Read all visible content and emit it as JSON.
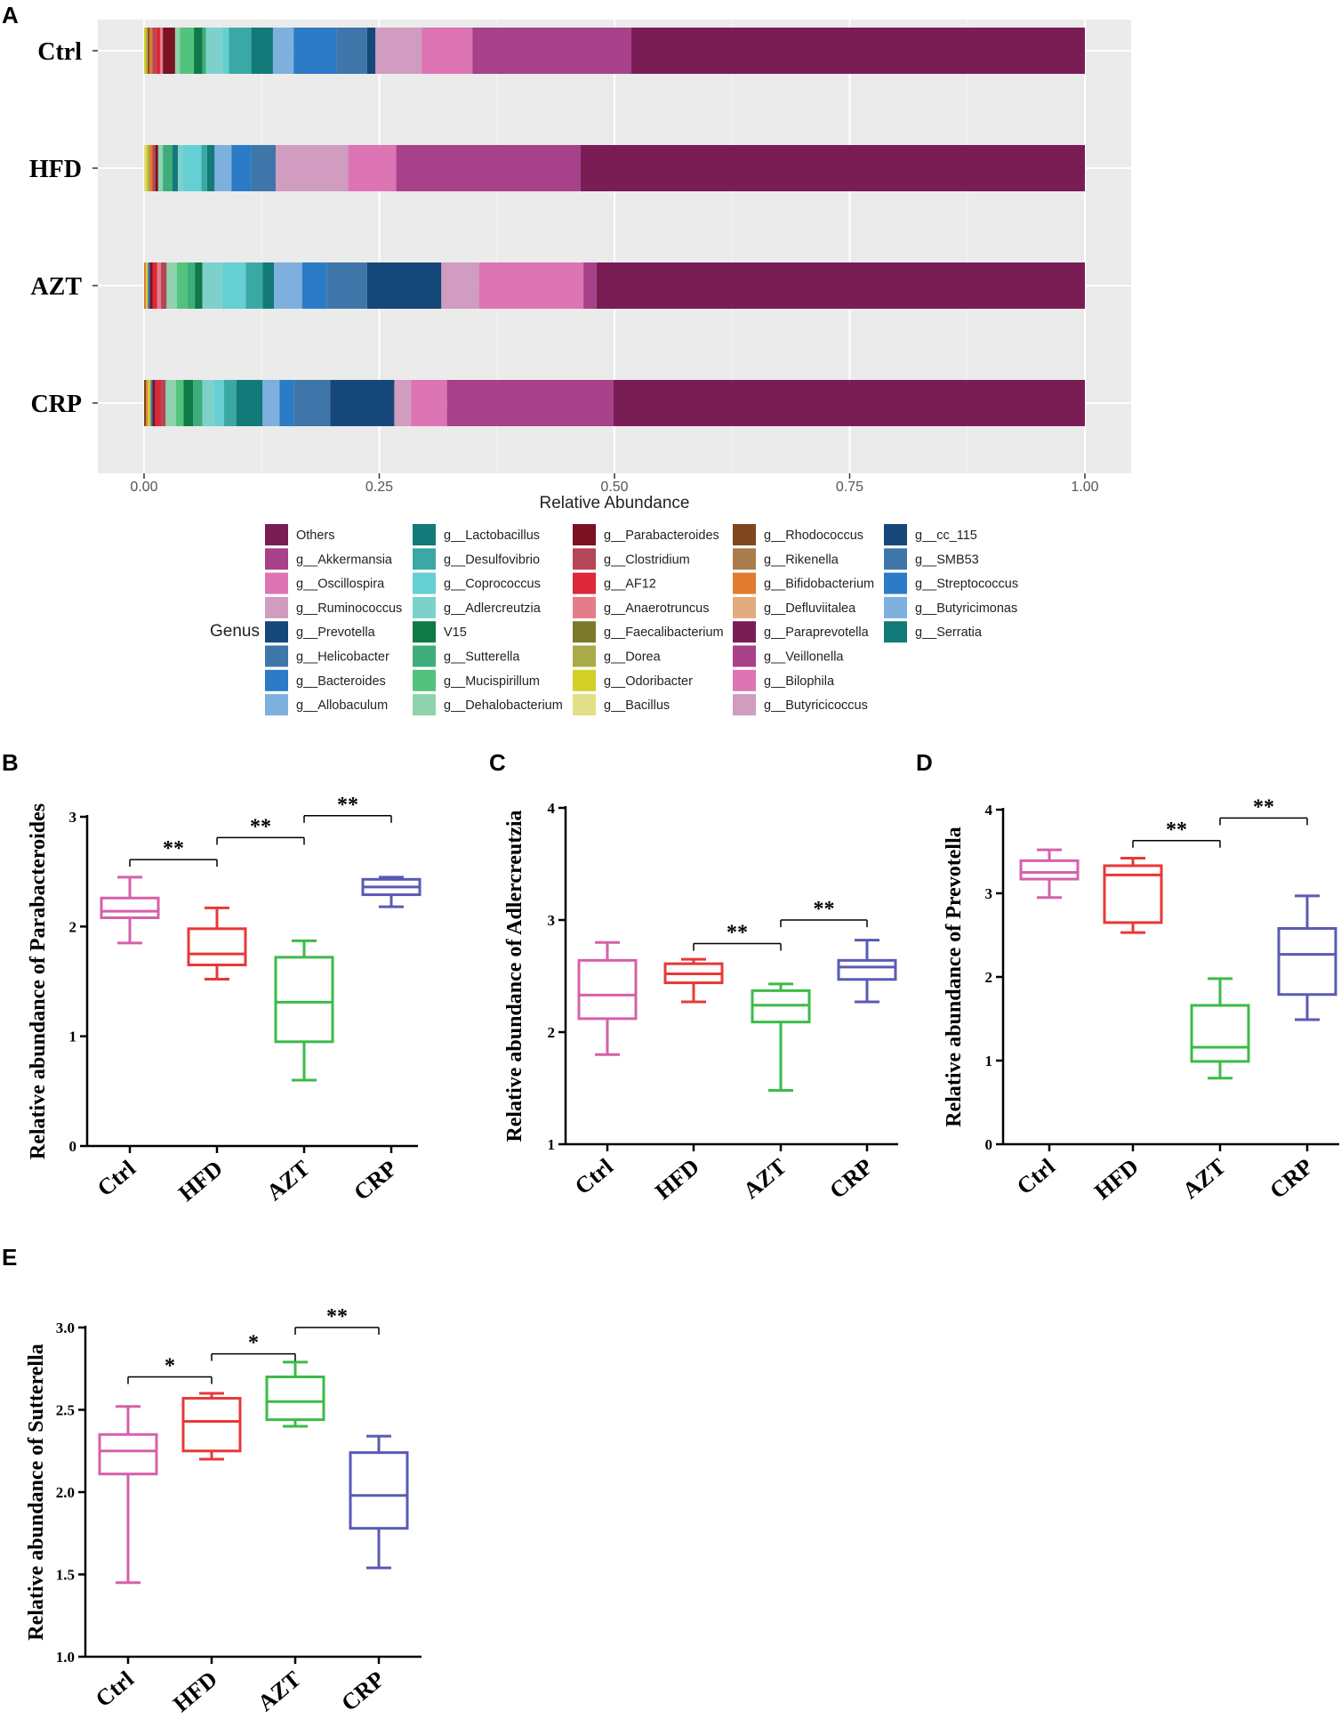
{
  "chart_data": [
    {
      "panel": "A",
      "type": "bar",
      "orientation": "horizontal-stacked",
      "categories": [
        "Ctrl",
        "HFD",
        "AZT",
        "CRP"
      ],
      "xlabel": "Relative Abundance",
      "xlim": [
        0,
        1
      ],
      "xticks": [
        "0.00",
        "0.25",
        "0.50",
        "0.75",
        "1.00"
      ],
      "legend_title": "Genus",
      "legend": [
        {
          "name": "Others",
          "color": "#7a1d55"
        },
        {
          "name": "g__Akkermansia",
          "color": "#a6418a"
        },
        {
          "name": "g__Oscillospira",
          "color": "#dd74b3"
        },
        {
          "name": "g__Ruminococcus",
          "color": "#d09cc0"
        },
        {
          "name": "g__Prevotella",
          "color": "#154879"
        },
        {
          "name": "g__Helicobacter",
          "color": "#3f76aa"
        },
        {
          "name": "g__Bacteroides",
          "color": "#2b7bc6"
        },
        {
          "name": "g__Allobaculum",
          "color": "#7eb0de"
        },
        {
          "name": "g__Lactobacillus",
          "color": "#127a78"
        },
        {
          "name": "g__Desulfovibrio",
          "color": "#3aa9a6"
        },
        {
          "name": "g__Coprococcus",
          "color": "#66cfd3"
        },
        {
          "name": "g__Adlercreutzia",
          "color": "#7ed1cb"
        },
        {
          "name": "V15",
          "color": "#0f7a48"
        },
        {
          "name": "g__Sutterella",
          "color": "#3ead7b"
        },
        {
          "name": "g__Mucispirillum",
          "color": "#53c27d"
        },
        {
          "name": "g__Dehalobacterium",
          "color": "#8ed3ad"
        },
        {
          "name": "g__Parabacteroides",
          "color": "#7c1124"
        },
        {
          "name": "g__Clostridium",
          "color": "#b44657"
        },
        {
          "name": "g__AF12",
          "color": "#dc2839"
        },
        {
          "name": "g__Anaerotruncus",
          "color": "#e57c8a"
        },
        {
          "name": "g__Faecalibacterium",
          "color": "#7b7a2b"
        },
        {
          "name": "g__Dorea",
          "color": "#a9ab48"
        },
        {
          "name": "g__Odoribacter",
          "color": "#d4cf27"
        },
        {
          "name": "g__Bacillus",
          "color": "#e2df86"
        },
        {
          "name": "g__Rhodococcus",
          "color": "#7e471e"
        },
        {
          "name": "g__Rikenella",
          "color": "#aa7b4b"
        },
        {
          "name": "g__Bifidobacterium",
          "color": "#e07b30"
        },
        {
          "name": "g__Defluviitalea",
          "color": "#e3ac7e"
        },
        {
          "name": "g__Paraprevotella",
          "color": "#7a1d55"
        },
        {
          "name": "g__Veillonella",
          "color": "#a6418a"
        },
        {
          "name": "g__Bilophila",
          "color": "#dd74b3"
        },
        {
          "name": "g__Butyricicoccus",
          "color": "#d09cc0"
        },
        {
          "name": "g__cc_115",
          "color": "#154879"
        },
        {
          "name": "g__SMB53",
          "color": "#3f76aa"
        },
        {
          "name": "g__Streptococcus",
          "color": "#2b7bc6"
        },
        {
          "name": "g__Butyricimonas",
          "color": "#7eb0de"
        },
        {
          "name": "g__Serratia",
          "color": "#127a78"
        }
      ],
      "series": [
        {
          "group": "Ctrl",
          "segments": [
            {
              "end": 0.002,
              "color": "#d4cf27"
            },
            {
              "end": 0.004,
              "color": "#a9ab48"
            },
            {
              "end": 0.006,
              "color": "#7e471e"
            },
            {
              "end": 0.009,
              "color": "#e07b30"
            },
            {
              "end": 0.013,
              "color": "#b44657"
            },
            {
              "end": 0.017,
              "color": "#dc2839"
            },
            {
              "end": 0.02,
              "color": "#e57c8a"
            },
            {
              "end": 0.033,
              "color": "#7c1124"
            },
            {
              "end": 0.038,
              "color": "#8ed3ad"
            },
            {
              "end": 0.053,
              "color": "#53c27d"
            },
            {
              "end": 0.062,
              "color": "#0f7a48"
            },
            {
              "end": 0.066,
              "color": "#3ead7b"
            },
            {
              "end": 0.083,
              "color": "#7ed1cb"
            },
            {
              "end": 0.09,
              "color": "#66cfd3"
            },
            {
              "end": 0.114,
              "color": "#3aa9a6"
            },
            {
              "end": 0.137,
              "color": "#127a78"
            },
            {
              "end": 0.159,
              "color": "#7eb0de"
            },
            {
              "end": 0.205,
              "color": "#2b7bc6"
            },
            {
              "end": 0.237,
              "color": "#3f76aa"
            },
            {
              "end": 0.246,
              "color": "#154879"
            },
            {
              "end": 0.295,
              "color": "#d09cc0"
            },
            {
              "end": 0.349,
              "color": "#dd74b3"
            },
            {
              "end": 0.518,
              "color": "#a6418a"
            },
            {
              "end": 1.0,
              "color": "#7a1d55"
            }
          ]
        },
        {
          "group": "HFD",
          "segments": [
            {
              "end": 0.002,
              "color": "#e2df86"
            },
            {
              "end": 0.004,
              "color": "#d4cf27"
            },
            {
              "end": 0.006,
              "color": "#a9ab48"
            },
            {
              "end": 0.009,
              "color": "#e07b30"
            },
            {
              "end": 0.012,
              "color": "#b44657"
            },
            {
              "end": 0.015,
              "color": "#7c1124"
            },
            {
              "end": 0.02,
              "color": "#8ed3ad"
            },
            {
              "end": 0.03,
              "color": "#3ead7b"
            },
            {
              "end": 0.036,
              "color": "#127a78"
            },
            {
              "end": 0.041,
              "color": "#7ed1cb"
            },
            {
              "end": 0.061,
              "color": "#66cfd3"
            },
            {
              "end": 0.067,
              "color": "#3aa9a6"
            },
            {
              "end": 0.075,
              "color": "#127a78"
            },
            {
              "end": 0.093,
              "color": "#7eb0de"
            },
            {
              "end": 0.114,
              "color": "#2b7bc6"
            },
            {
              "end": 0.14,
              "color": "#3f76aa"
            },
            {
              "end": 0.217,
              "color": "#d09cc0"
            },
            {
              "end": 0.268,
              "color": "#dd74b3"
            },
            {
              "end": 0.464,
              "color": "#a6418a"
            },
            {
              "end": 1.0,
              "color": "#7a1d55"
            }
          ]
        },
        {
          "group": "AZT",
          "segments": [
            {
              "end": 0.002,
              "color": "#e07b30"
            },
            {
              "end": 0.004,
              "color": "#d4cf27"
            },
            {
              "end": 0.006,
              "color": "#2b7bc6"
            },
            {
              "end": 0.009,
              "color": "#7c1124"
            },
            {
              "end": 0.014,
              "color": "#dc2839"
            },
            {
              "end": 0.018,
              "color": "#e57c8a"
            },
            {
              "end": 0.024,
              "color": "#b44657"
            },
            {
              "end": 0.035,
              "color": "#8ed3ad"
            },
            {
              "end": 0.046,
              "color": "#53c27d"
            },
            {
              "end": 0.054,
              "color": "#3ead7b"
            },
            {
              "end": 0.062,
              "color": "#0f7a48"
            },
            {
              "end": 0.083,
              "color": "#7ed1cb"
            },
            {
              "end": 0.108,
              "color": "#66cfd3"
            },
            {
              "end": 0.126,
              "color": "#3aa9a6"
            },
            {
              "end": 0.138,
              "color": "#127a78"
            },
            {
              "end": 0.168,
              "color": "#7eb0de"
            },
            {
              "end": 0.194,
              "color": "#2b7bc6"
            },
            {
              "end": 0.237,
              "color": "#3f76aa"
            },
            {
              "end": 0.316,
              "color": "#154879"
            },
            {
              "end": 0.356,
              "color": "#d09cc0"
            },
            {
              "end": 0.467,
              "color": "#dd74b3"
            },
            {
              "end": 0.481,
              "color": "#a6418a"
            },
            {
              "end": 1.0,
              "color": "#7a1d55"
            }
          ]
        },
        {
          "group": "CRP",
          "segments": [
            {
              "end": 0.002,
              "color": "#7e471e"
            },
            {
              "end": 0.004,
              "color": "#e07b30"
            },
            {
              "end": 0.007,
              "color": "#d4cf27"
            },
            {
              "end": 0.009,
              "color": "#2b7bc6"
            },
            {
              "end": 0.012,
              "color": "#7c1124"
            },
            {
              "end": 0.018,
              "color": "#dc2839"
            },
            {
              "end": 0.023,
              "color": "#b44657"
            },
            {
              "end": 0.034,
              "color": "#8ed3ad"
            },
            {
              "end": 0.042,
              "color": "#53c27d"
            },
            {
              "end": 0.052,
              "color": "#0f7a48"
            },
            {
              "end": 0.062,
              "color": "#3ead7b"
            },
            {
              "end": 0.074,
              "color": "#7ed1cb"
            },
            {
              "end": 0.085,
              "color": "#66cfd3"
            },
            {
              "end": 0.098,
              "color": "#3aa9a6"
            },
            {
              "end": 0.126,
              "color": "#127a78"
            },
            {
              "end": 0.144,
              "color": "#7eb0de"
            },
            {
              "end": 0.159,
              "color": "#2b7bc6"
            },
            {
              "end": 0.198,
              "color": "#3f76aa"
            },
            {
              "end": 0.266,
              "color": "#154879"
            },
            {
              "end": 0.284,
              "color": "#d09cc0"
            },
            {
              "end": 0.322,
              "color": "#dd74b3"
            },
            {
              "end": 0.499,
              "color": "#a6418a"
            },
            {
              "end": 1.0,
              "color": "#7a1d55"
            }
          ]
        }
      ]
    },
    {
      "panel": "B",
      "type": "box",
      "ylabel": "Relative abundance of Parabacteroides",
      "ylim": [
        0,
        3
      ],
      "yticks": [
        "0",
        "1",
        "2",
        "3"
      ],
      "categories": [
        "Ctrl",
        "HFD",
        "AZT",
        "CRP"
      ],
      "colors": [
        "#d660aa",
        "#e83838",
        "#3cbb48",
        "#5a5ab4"
      ],
      "boxes": [
        {
          "min": 1.85,
          "q1": 2.08,
          "median": 2.14,
          "q3": 2.26,
          "max": 2.45
        },
        {
          "min": 1.52,
          "q1": 1.65,
          "median": 1.75,
          "q3": 1.98,
          "max": 2.17
        },
        {
          "min": 0.6,
          "q1": 0.95,
          "median": 1.31,
          "q3": 1.72,
          "max": 1.87
        },
        {
          "min": 2.18,
          "q1": 2.29,
          "median": 2.36,
          "q3": 2.43,
          "max": 2.45
        }
      ],
      "significance": [
        {
          "from": 0,
          "to": 1,
          "label": "**",
          "y": 2.61
        },
        {
          "from": 1,
          "to": 2,
          "label": "**",
          "y": 2.81
        },
        {
          "from": 2,
          "to": 3,
          "label": "**",
          "y": 3.01
        }
      ]
    },
    {
      "panel": "C",
      "type": "box",
      "ylabel": "Relative abundance of Adlercreutzia",
      "ylim": [
        1,
        4
      ],
      "yticks": [
        "1",
        "2",
        "3",
        "4"
      ],
      "categories": [
        "Ctrl",
        "HFD",
        "AZT",
        "CRP"
      ],
      "colors": [
        "#d660aa",
        "#e83838",
        "#3cbb48",
        "#5a5ab4"
      ],
      "boxes": [
        {
          "min": 1.8,
          "q1": 2.12,
          "median": 2.33,
          "q3": 2.64,
          "max": 2.8
        },
        {
          "min": 2.27,
          "q1": 2.44,
          "median": 2.52,
          "q3": 2.61,
          "max": 2.65
        },
        {
          "min": 1.48,
          "q1": 2.09,
          "median": 2.24,
          "q3": 2.37,
          "max": 2.43
        },
        {
          "min": 2.27,
          "q1": 2.47,
          "median": 2.58,
          "q3": 2.64,
          "max": 2.82
        }
      ],
      "significance": [
        {
          "from": 1,
          "to": 2,
          "label": "**",
          "y": 2.79
        },
        {
          "from": 2,
          "to": 3,
          "label": "**",
          "y": 3.0
        }
      ]
    },
    {
      "panel": "D",
      "type": "box",
      "ylabel": "Relative abundance of Prevotella",
      "ylim": [
        0,
        4
      ],
      "yticks": [
        "0",
        "1",
        "2",
        "3",
        "4"
      ],
      "categories": [
        "Ctrl",
        "HFD",
        "AZT",
        "CRP"
      ],
      "colors": [
        "#d660aa",
        "#e83838",
        "#3cbb48",
        "#5a5ab4"
      ],
      "boxes": [
        {
          "min": 2.95,
          "q1": 3.17,
          "median": 3.25,
          "q3": 3.39,
          "max": 3.52
        },
        {
          "min": 2.53,
          "q1": 2.65,
          "median": 3.22,
          "q3": 3.33,
          "max": 3.42
        },
        {
          "min": 0.79,
          "q1": 0.99,
          "median": 1.16,
          "q3": 1.66,
          "max": 1.98
        },
        {
          "min": 1.49,
          "q1": 1.79,
          "median": 2.27,
          "q3": 2.58,
          "max": 2.97
        }
      ],
      "significance": [
        {
          "from": 1,
          "to": 2,
          "label": "**",
          "y": 3.63
        },
        {
          "from": 2,
          "to": 3,
          "label": "**",
          "y": 3.9
        }
      ]
    },
    {
      "panel": "E",
      "type": "box",
      "ylabel": "Relative abundance of Sutterella",
      "ylim": [
        1.0,
        3.0
      ],
      "yticks": [
        "1.0",
        "1.5",
        "2.0",
        "2.5",
        "3.0"
      ],
      "categories": [
        "Ctrl",
        "HFD",
        "AZT",
        "CRP"
      ],
      "colors": [
        "#d660aa",
        "#e83838",
        "#3cbb48",
        "#5a5ab4"
      ],
      "boxes": [
        {
          "min": 1.45,
          "q1": 2.11,
          "median": 2.25,
          "q3": 2.35,
          "max": 2.52
        },
        {
          "min": 2.2,
          "q1": 2.25,
          "median": 2.43,
          "q3": 2.57,
          "max": 2.6
        },
        {
          "min": 2.4,
          "q1": 2.44,
          "median": 2.55,
          "q3": 2.7,
          "max": 2.79
        },
        {
          "min": 1.54,
          "q1": 1.78,
          "median": 1.98,
          "q3": 2.24,
          "max": 2.34
        }
      ],
      "significance": [
        {
          "from": 0,
          "to": 1,
          "label": "*",
          "y": 2.7
        },
        {
          "from": 1,
          "to": 2,
          "label": "*",
          "y": 2.84
        },
        {
          "from": 2,
          "to": 3,
          "label": "**",
          "y": 3.0
        }
      ]
    }
  ]
}
